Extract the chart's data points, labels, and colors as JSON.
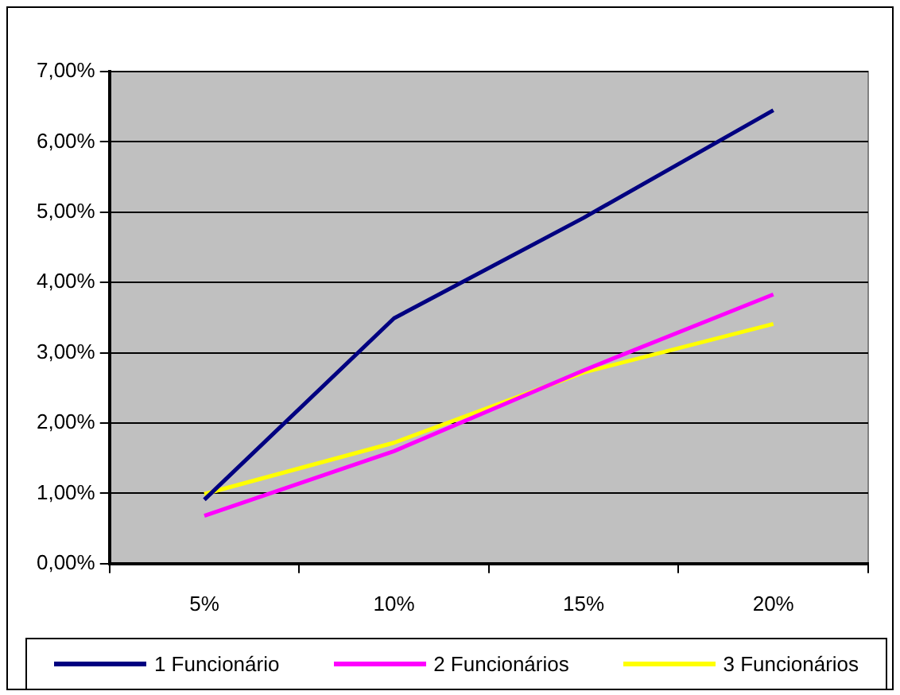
{
  "chart_data": {
    "type": "line",
    "categories": [
      "5%",
      "10%",
      "15%",
      "20%"
    ],
    "series": [
      {
        "name": "1 Funcionário",
        "color": "#000080",
        "values": [
          0.91,
          3.49,
          4.92,
          6.45
        ]
      },
      {
        "name": "2 Funcionários",
        "color": "#ff00ff",
        "values": [
          0.68,
          1.6,
          2.75,
          3.83
        ]
      },
      {
        "name": "3 Funcionários",
        "color": "#ffff00",
        "values": [
          0.99,
          1.72,
          2.72,
          3.41
        ]
      }
    ],
    "ylim": [
      0,
      7
    ],
    "yticks": [
      {
        "value": 0,
        "label": "0,00%"
      },
      {
        "value": 1,
        "label": "1,00%"
      },
      {
        "value": 2,
        "label": "2,00%"
      },
      {
        "value": 3,
        "label": "3,00%"
      },
      {
        "value": 4,
        "label": "4,00%"
      },
      {
        "value": 5,
        "label": "5,00%"
      },
      {
        "value": 6,
        "label": "6,00%"
      },
      {
        "value": 7,
        "label": "7,00%"
      }
    ],
    "grid": "y",
    "legend": "bottom",
    "marker": "none",
    "line_style": "solid"
  }
}
